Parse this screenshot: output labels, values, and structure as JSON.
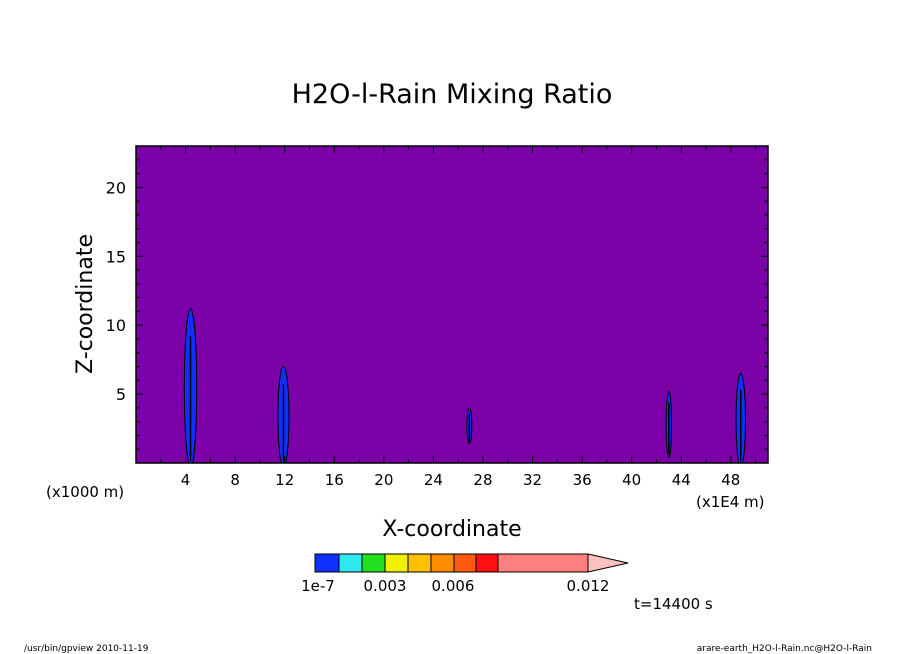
{
  "chart_data": {
    "type": "heatmap",
    "title": "H2O-l-Rain Mixing Ratio",
    "xlabel": "X-coordinate",
    "ylabel": "Z-coordinate",
    "x_unit_left": "(x1000 m)",
    "x_unit_right": "(x1E4 m)",
    "xlim": [
      0,
      51
    ],
    "ylim": [
      0,
      23
    ],
    "x_ticks": [
      4,
      8,
      12,
      16,
      20,
      24,
      28,
      32,
      36,
      40,
      44,
      48
    ],
    "y_ticks": [
      5,
      10,
      15,
      20
    ],
    "background_value_color": "#7b00a8",
    "cells": [
      {
        "x": 4.4,
        "z_top": 11.2,
        "half_width": 0.5
      },
      {
        "x": 11.9,
        "z_top": 7.0,
        "half_width": 0.45
      },
      {
        "x": 26.9,
        "z_top": 4.0,
        "z_bottom": 1.4,
        "half_width": 0.2
      },
      {
        "x": 43.0,
        "z_top": 5.2,
        "z_bottom": 0.4,
        "half_width": 0.22
      },
      {
        "x": 48.8,
        "z_top": 6.5,
        "half_width": 0.38
      }
    ],
    "cell_color": "#1030ff",
    "colorbar": {
      "colors": [
        "#1030ff",
        "#30e8f0",
        "#20e020",
        "#f0f000",
        "#ffc000",
        "#ff8c00",
        "#ff5a10",
        "#ff1010",
        "#ff8080",
        "#ffc0c0"
      ],
      "labels": [
        "1e-7",
        "0.003",
        "0.006",
        "0.012"
      ]
    },
    "time_label": "t=14400 s"
  },
  "footer": {
    "left": "/usr/bin/gpview   2010-11-19",
    "right": "arare-earth_H2O-l-Rain.nc@H2O-l-Rain"
  }
}
